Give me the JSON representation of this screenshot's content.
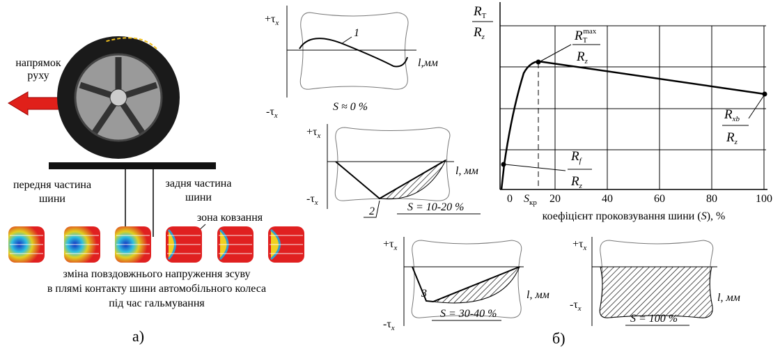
{
  "panel_a": {
    "direction": [
      "напрямок",
      "руху"
    ],
    "front": [
      "передня частина",
      "шини"
    ],
    "rear": [
      "задня частина",
      "шини"
    ],
    "slip_zone": "зона ковзання",
    "caption": [
      "зміна повздовжнього напруження зсуву",
      "в плямі контакту шини автомобільного колеса",
      "під час гальмування"
    ],
    "label": "а)"
  },
  "panel_b": {
    "label": "б)",
    "diagrams": [
      {
        "plus_tau": "+τ",
        "minus_tau": "-τ",
        "tau_sub": "x",
        "axis": "l,мм",
        "curve_label": "1",
        "slip": "S ≈ 0 %"
      },
      {
        "plus_tau": "+τ",
        "minus_tau": "-τ",
        "tau_sub": "x",
        "axis": "l, мм",
        "curve_label": "2",
        "slip": "S = 10-20 %"
      },
      {
        "plus_tau": "+τ",
        "minus_tau": "-τ",
        "tau_sub": "x",
        "axis": "l, мм",
        "curve_label": "3",
        "slip": "S = 30-40 %"
      },
      {
        "plus_tau": "+τ",
        "minus_tau": "-τ",
        "tau_sub": "x",
        "axis": "l, мм",
        "slip": "S = 100 %"
      }
    ],
    "chart": {
      "y_label": {
        "num": "R",
        "num_sub": "T",
        "den": "R",
        "den_sub": "z"
      },
      "peak": {
        "num": "R",
        "num_sub": "T",
        "num_sup": "max",
        "den": "R",
        "den_sub": "z"
      },
      "rxb": {
        "num": "R",
        "num_sub": "xb",
        "den": "R",
        "den_sub": "z"
      },
      "rf": {
        "num": "R",
        "num_sub": "f",
        "den": "R",
        "den_sub": "z"
      },
      "s_cr": {
        "main": "S",
        "sub": "кр"
      },
      "xticks": [
        0,
        20,
        40,
        60,
        80,
        100
      ],
      "x_label": [
        "коефіцієнт проковзування шини (",
        "S",
        "), %"
      ]
    }
  }
}
